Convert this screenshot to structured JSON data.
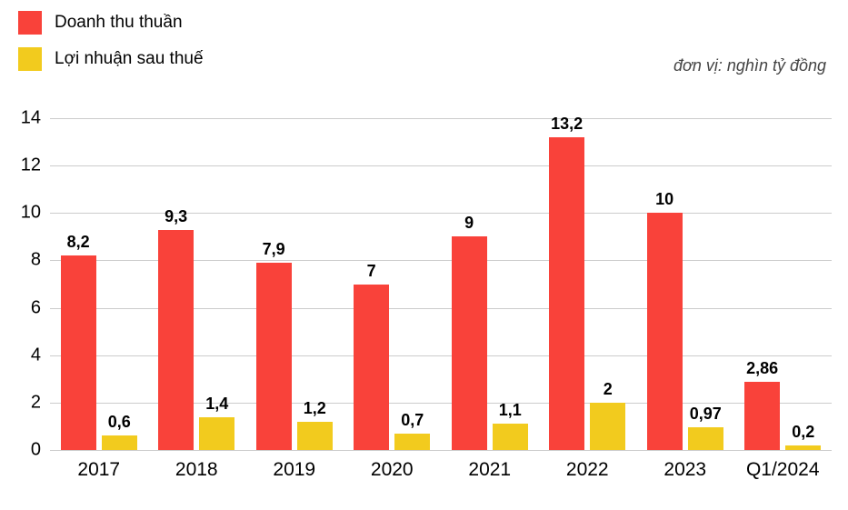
{
  "legend": {
    "series1": {
      "label": "Doanh thu thuần",
      "color": "#f9423a"
    },
    "series2": {
      "label": "Lợi nhuận sau thuế",
      "color": "#f2cb1e"
    }
  },
  "unit_note": "đơn vị: nghìn tỷ đồng",
  "chart": {
    "type": "bar",
    "ylim": [
      0,
      14
    ],
    "ytick_step": 2,
    "yticks": [
      0,
      2,
      4,
      6,
      8,
      10,
      12,
      14
    ],
    "grid_color": "#cccccc",
    "background_color": "#ffffff",
    "label_fontsize": 18,
    "axis_fontsize": 20,
    "bar_width_ratio": 0.36,
    "bar_gap_ratio": 0.06,
    "categories": [
      "2017",
      "2018",
      "2019",
      "2020",
      "2021",
      "2022",
      "2023",
      "Q1/2024"
    ],
    "series": [
      {
        "key": "revenue",
        "color": "#f9423a",
        "values": [
          8.2,
          9.3,
          7.9,
          7.0,
          9.0,
          13.2,
          10.0,
          2.86
        ],
        "value_labels": [
          "8,2",
          "9,3",
          "7,9",
          "7",
          "9",
          "13,2",
          "10",
          "2,86"
        ]
      },
      {
        "key": "profit",
        "color": "#f2cb1e",
        "values": [
          0.6,
          1.4,
          1.2,
          0.7,
          1.1,
          2.0,
          0.97,
          0.2
        ],
        "value_labels": [
          "0,6",
          "1,4",
          "1,2",
          "0,7",
          "1,1",
          "2",
          "0,97",
          "0,2"
        ]
      }
    ]
  }
}
